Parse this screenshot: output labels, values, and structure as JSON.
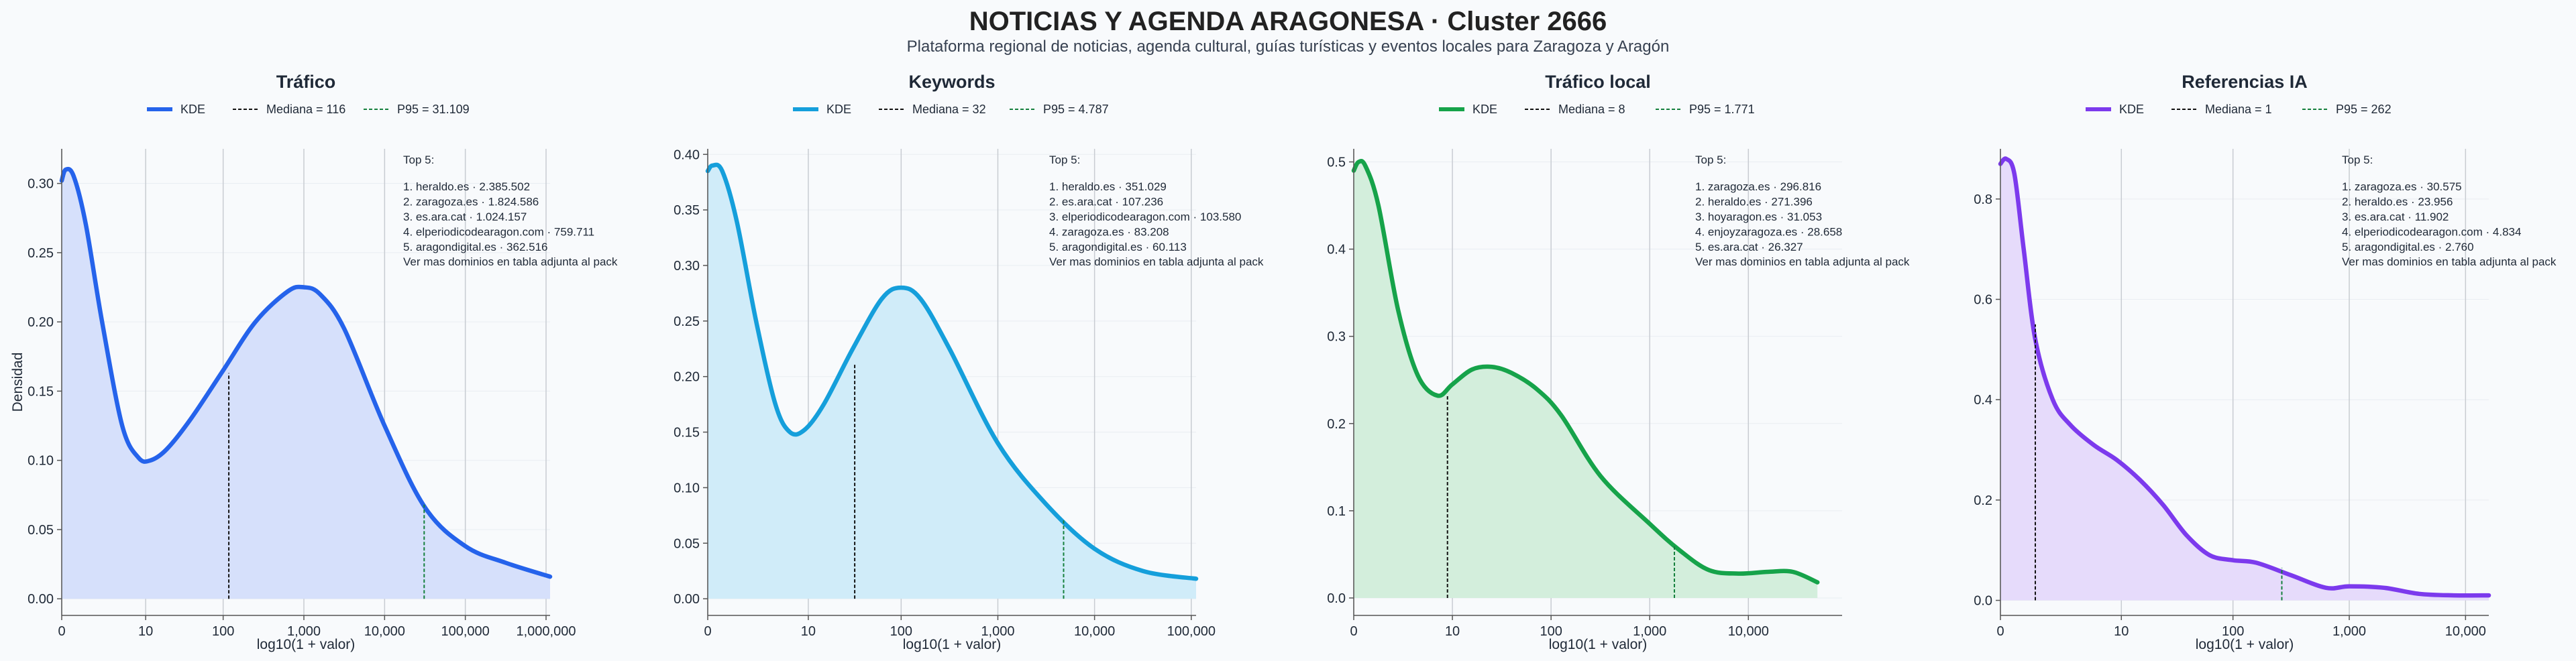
{
  "title": "NOTICIAS Y AGENDA ARAGONESA · Cluster 2666",
  "subtitle": "Plataforma regional de noticias, agenda cultural, guías turísticas y eventos locales para Zaragoza y Aragón",
  "chart_data": [
    {
      "type": "area",
      "title": "Tráfico",
      "color": "#2563eb",
      "fill": "#d6e0fb",
      "legend": {
        "kde": "KDE",
        "median": "Mediana = 116",
        "p95": "P95 = 31.109"
      },
      "xlabel": "log10(1 + valor)",
      "ylabel": "Densidad",
      "xlim": [
        0,
        6.05
      ],
      "ylim": [
        -0.012,
        0.325
      ],
      "xticks": [
        {
          "v": 0,
          "label": "0"
        },
        {
          "v": 1.04,
          "label": "10"
        },
        {
          "v": 2.0,
          "label": "100"
        },
        {
          "v": 3.0,
          "label": "1,000"
        },
        {
          "v": 4.0,
          "label": "10,000"
        },
        {
          "v": 5.0,
          "label": "100,000"
        },
        {
          "v": 6.0,
          "label": "1,000,000"
        }
      ],
      "yticks": [
        {
          "v": 0.0,
          "label": "0.00"
        },
        {
          "v": 0.05,
          "label": "0.05"
        },
        {
          "v": 0.1,
          "label": "0.10"
        },
        {
          "v": 0.15,
          "label": "0.15"
        },
        {
          "v": 0.2,
          "label": "0.20"
        },
        {
          "v": 0.25,
          "label": "0.25"
        },
        {
          "v": 0.3,
          "label": "0.30"
        }
      ],
      "median": {
        "x": 2.07,
        "y": 0.163
      },
      "p95": {
        "x": 4.49,
        "y": 0.068
      },
      "x": [
        0,
        0.05,
        0.15,
        0.3,
        0.5,
        0.75,
        0.95,
        1.1,
        1.3,
        1.6,
        2.0,
        2.4,
        2.8,
        3.0,
        3.2,
        3.5,
        4.0,
        4.5,
        5.0,
        5.5,
        6.05
      ],
      "y": [
        0.302,
        0.31,
        0.305,
        0.27,
        0.2,
        0.125,
        0.102,
        0.1,
        0.108,
        0.13,
        0.165,
        0.2,
        0.222,
        0.225,
        0.22,
        0.195,
        0.125,
        0.066,
        0.038,
        0.026,
        0.016
      ],
      "top5": {
        "heading": "Top 5:",
        "items": [
          "1. heraldo.es · 2.385.502",
          "2. zaragoza.es · 1.824.586",
          "3. es.ara.cat · 1.024.157",
          "4. elperiodicodearagon.com · 759.711",
          "5. aragondigital.es · 362.516"
        ],
        "footer": "Ver mas dominios en tabla adjunta al pack"
      }
    },
    {
      "type": "area",
      "title": "Keywords",
      "color": "#159fdb",
      "fill": "#d0ecf9",
      "legend": {
        "kde": "KDE",
        "median": "Mediana = 32",
        "p95": "P95 = 4.787"
      },
      "xlabel": "log10(1 + valor)",
      "ylabel": "",
      "xlim": [
        0,
        5.05
      ],
      "ylim": [
        -0.015,
        0.405
      ],
      "xticks": [
        {
          "v": 0,
          "label": "0"
        },
        {
          "v": 1.04,
          "label": "10"
        },
        {
          "v": 2.0,
          "label": "100"
        },
        {
          "v": 3.0,
          "label": "1,000"
        },
        {
          "v": 4.0,
          "label": "10,000"
        },
        {
          "v": 5.0,
          "label": "100,000"
        }
      ],
      "yticks": [
        {
          "v": 0.0,
          "label": "0.00"
        },
        {
          "v": 0.05,
          "label": "0.05"
        },
        {
          "v": 0.1,
          "label": "0.10"
        },
        {
          "v": 0.15,
          "label": "0.15"
        },
        {
          "v": 0.2,
          "label": "0.20"
        },
        {
          "v": 0.25,
          "label": "0.25"
        },
        {
          "v": 0.3,
          "label": "0.30"
        },
        {
          "v": 0.35,
          "label": "0.35"
        },
        {
          "v": 0.4,
          "label": "0.40"
        }
      ],
      "median": {
        "x": 1.52,
        "y": 0.212
      },
      "p95": {
        "x": 3.68,
        "y": 0.072
      },
      "x": [
        0,
        0.05,
        0.15,
        0.3,
        0.5,
        0.7,
        0.85,
        1.0,
        1.2,
        1.5,
        1.8,
        2.0,
        2.2,
        2.5,
        3.0,
        3.5,
        4.0,
        4.5,
        5.05
      ],
      "y": [
        0.385,
        0.39,
        0.385,
        0.34,
        0.25,
        0.175,
        0.15,
        0.152,
        0.175,
        0.225,
        0.27,
        0.28,
        0.27,
        0.225,
        0.14,
        0.085,
        0.045,
        0.025,
        0.018
      ],
      "top5": {
        "heading": "Top 5:",
        "items": [
          "1. heraldo.es · 351.029",
          "2. es.ara.cat · 107.236",
          "3. elperiodicodearagon.com · 103.580",
          "4. zaragoza.es · 83.208",
          "5. aragondigital.es · 60.113"
        ],
        "footer": "Ver mas dominios en tabla adjunta al pack"
      }
    },
    {
      "type": "area",
      "title": "Tráfico local",
      "color": "#16a34a",
      "fill": "#d3eedc",
      "legend": {
        "kde": "KDE",
        "median": "Mediana = 8",
        "p95": "P95 = 1.771"
      },
      "xlabel": "log10(1 + valor)",
      "ylabel": "",
      "xlim": [
        0,
        4.95
      ],
      "ylim": [
        -0.02,
        0.515
      ],
      "xticks": [
        {
          "v": 0,
          "label": "0"
        },
        {
          "v": 1.0,
          "label": "10"
        },
        {
          "v": 2.0,
          "label": "100"
        },
        {
          "v": 3.0,
          "label": "1,000"
        },
        {
          "v": 4.0,
          "label": "10,000"
        }
      ],
      "yticks": [
        {
          "v": 0.0,
          "label": "0.0"
        },
        {
          "v": 0.1,
          "label": "0.1"
        },
        {
          "v": 0.2,
          "label": "0.2"
        },
        {
          "v": 0.3,
          "label": "0.3"
        },
        {
          "v": 0.4,
          "label": "0.4"
        },
        {
          "v": 0.5,
          "label": "0.5"
        }
      ],
      "median": {
        "x": 0.95,
        "y": 0.233
      },
      "p95": {
        "x": 3.25,
        "y": 0.06
      },
      "x": [
        0,
        0.05,
        0.12,
        0.25,
        0.45,
        0.65,
        0.85,
        1.0,
        1.2,
        1.4,
        1.6,
        1.85,
        2.1,
        2.5,
        3.0,
        3.3,
        3.6,
        3.9,
        4.2,
        4.45,
        4.7
      ],
      "y": [
        0.49,
        0.5,
        0.495,
        0.45,
        0.33,
        0.255,
        0.232,
        0.245,
        0.262,
        0.265,
        0.258,
        0.24,
        0.21,
        0.14,
        0.085,
        0.055,
        0.032,
        0.028,
        0.03,
        0.03,
        0.018
      ],
      "top5": {
        "heading": "Top 5:",
        "items": [
          "1. zaragoza.es · 296.816",
          "2. heraldo.es · 271.396",
          "3. hoyaragon.es · 31.053",
          "4. enjoyzaragoza.es · 28.658",
          "5. es.ara.cat · 26.327"
        ],
        "footer": "Ver mas dominios en tabla adjunta al pack"
      }
    },
    {
      "type": "area",
      "title": "Referencias IA",
      "color": "#7c3aed",
      "fill": "#e6dbfb",
      "legend": {
        "kde": "KDE",
        "median": "Mediana = 1",
        "p95": "P95 = 262"
      },
      "xlabel": "log10(1 + valor)",
      "ylabel": "",
      "xlim": [
        0,
        4.2
      ],
      "ylim": [
        -0.03,
        0.9
      ],
      "xticks": [
        {
          "v": 0,
          "label": "0"
        },
        {
          "v": 1.04,
          "label": "10"
        },
        {
          "v": 2.0,
          "label": "100"
        },
        {
          "v": 3.0,
          "label": "1,000"
        },
        {
          "v": 4.0,
          "label": "10,000"
        }
      ],
      "yticks": [
        {
          "v": 0.0,
          "label": "0.0"
        },
        {
          "v": 0.2,
          "label": "0.2"
        },
        {
          "v": 0.4,
          "label": "0.4"
        },
        {
          "v": 0.6,
          "label": "0.6"
        },
        {
          "v": 0.8,
          "label": "0.8"
        }
      ],
      "median": {
        "x": 0.3,
        "y": 0.55
      },
      "p95": {
        "x": 2.42,
        "y": 0.065
      },
      "x": [
        0,
        0.05,
        0.12,
        0.2,
        0.3,
        0.45,
        0.6,
        0.8,
        1.0,
        1.2,
        1.4,
        1.6,
        1.8,
        2.0,
        2.2,
        2.5,
        2.8,
        3.0,
        3.3,
        3.6,
        3.9,
        4.2
      ],
      "y": [
        0.87,
        0.88,
        0.85,
        0.7,
        0.52,
        0.4,
        0.35,
        0.31,
        0.28,
        0.24,
        0.19,
        0.13,
        0.09,
        0.08,
        0.075,
        0.05,
        0.025,
        0.028,
        0.025,
        0.013,
        0.01,
        0.01
      ],
      "top5": {
        "heading": "Top 5:",
        "items": [
          "1. zaragoza.es · 30.575",
          "2. heraldo.es · 23.956",
          "3. es.ara.cat · 11.902",
          "4. elperiodicodearagon.com · 4.834",
          "5. aragondigital.es · 2.760"
        ],
        "footer": "Ver mas dominios en tabla adjunta al pack"
      }
    }
  ]
}
